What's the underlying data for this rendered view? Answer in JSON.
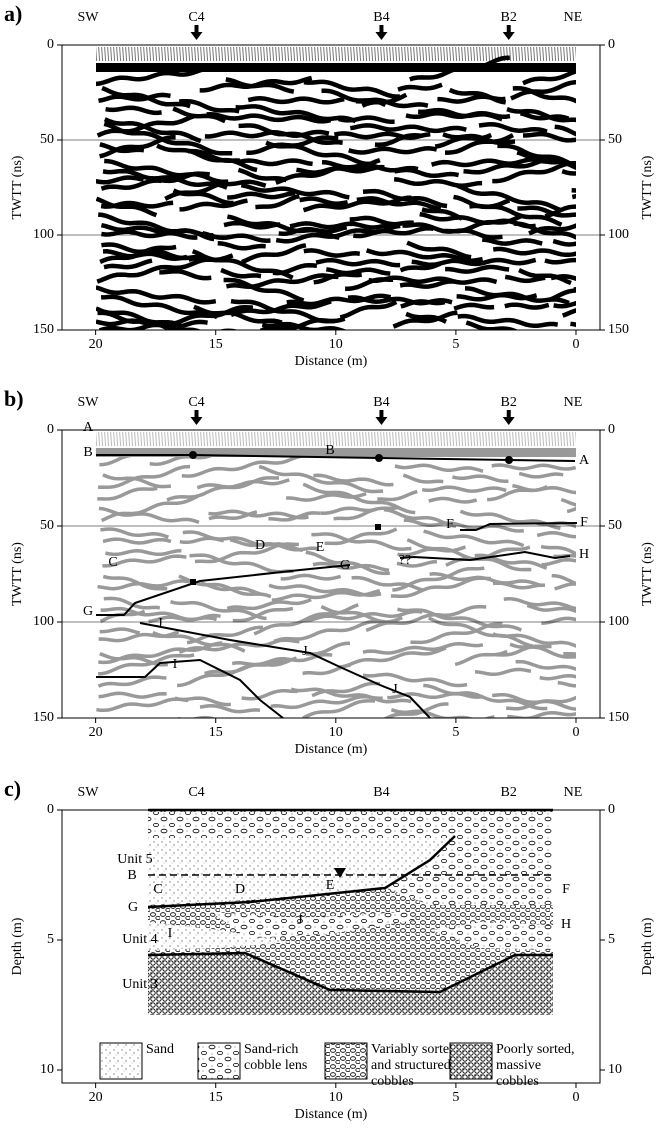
{
  "chart_data": [
    {
      "type": "radargram",
      "panel": "a)",
      "ends": [
        "SW",
        "NE"
      ],
      "boreholes": [
        {
          "name": "C4",
          "x": 15.8
        },
        {
          "name": "B4",
          "x": 8.1
        },
        {
          "name": "B2",
          "x": 2.8
        }
      ],
      "xlabel": "Distance (m)",
      "ylabel": "TWTT (ns)",
      "xlim": [
        21.4,
        -1
      ],
      "xticks": [
        20,
        15,
        10,
        5,
        0
      ],
      "ylim": [
        0,
        150
      ],
      "yticks": [
        0,
        50,
        100,
        150
      ],
      "grid": true,
      "color": "#000000"
    },
    {
      "type": "interpretation",
      "panel": "b)",
      "ends": [
        "SW",
        "NE"
      ],
      "boreholes": [
        {
          "name": "C4",
          "x": 15.8
        },
        {
          "name": "B4",
          "x": 8.1
        },
        {
          "name": "B2",
          "x": 2.8
        }
      ],
      "xlabel": "Distance (m)",
      "ylabel": "TWTT (ns)",
      "xlim": [
        21.4,
        -1
      ],
      "xticks": [
        20,
        15,
        10,
        5,
        0
      ],
      "ylim": [
        0,
        150
      ],
      "yticks": [
        0,
        50,
        100,
        150
      ],
      "grid": true,
      "color": "#999999",
      "annotations": [
        "A",
        "A",
        "B",
        "B",
        "C",
        "D",
        "E",
        "F",
        "F",
        "G",
        "G",
        "H",
        "I",
        "J",
        "J",
        "J",
        "??"
      ]
    },
    {
      "type": "section",
      "panel": "c)",
      "ends": [
        "SW",
        "NE"
      ],
      "boreholes": [
        {
          "name": "C4",
          "x": 15.8
        },
        {
          "name": "B4",
          "x": 8.1
        },
        {
          "name": "B2",
          "x": 2.8
        }
      ],
      "xlabel": "Distance (m)",
      "ylabel": "Depth (m)",
      "xlim": [
        21.4,
        -1
      ],
      "xticks": [
        20,
        15,
        10,
        5,
        0
      ],
      "ylim": [
        0,
        10.5
      ],
      "yticks": [
        0,
        5,
        10
      ],
      "grid": false,
      "units": [
        "Unit 5",
        "Unit 4",
        "Unit 3"
      ],
      "annotations": [
        "B",
        "C",
        "D",
        "E",
        "G",
        "J",
        "I",
        "F",
        "H"
      ],
      "legend": [
        {
          "name": [
            "Sand"
          ],
          "pattern": "sand"
        },
        {
          "name": [
            "Sand-rich",
            "cobble lens"
          ],
          "pattern": "lens"
        },
        {
          "name": [
            "Variably sorted",
            "and structured",
            "cobbles"
          ],
          "pattern": "variable"
        },
        {
          "name": [
            "Poorly sorted,",
            "massive",
            "cobbles"
          ],
          "pattern": "massive"
        }
      ]
    }
  ]
}
